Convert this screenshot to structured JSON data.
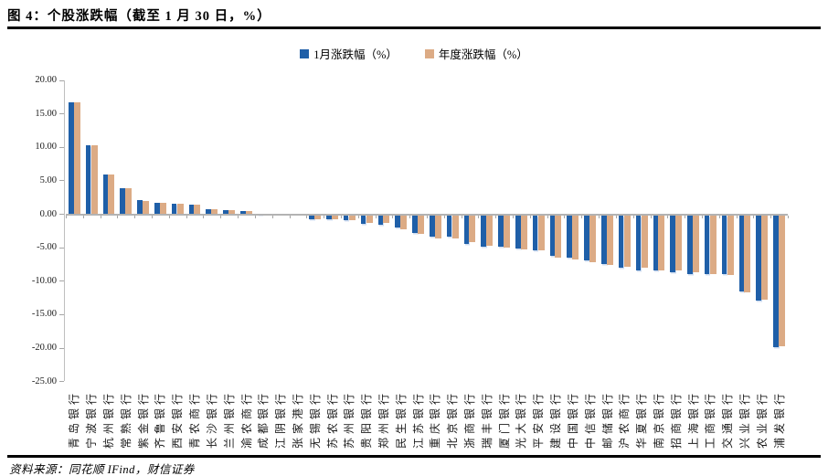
{
  "page": {
    "title": "图 4：个股涨跌幅（截至 1 月 30 日，%）",
    "source": "资料来源：同花顺 IFind，财信证券"
  },
  "chart_data": {
    "type": "bar",
    "title": "图 4：个股涨跌幅（截至 1 月 30 日，%）",
    "xlabel": "",
    "ylabel": "",
    "ylim": [
      -25,
      20
    ],
    "ytick_step": 5,
    "ytick_labels": [
      "20.00",
      "15.00",
      "10.00",
      "5.00",
      "0.00",
      "-5.00",
      "-10.00",
      "-15.00",
      "-20.00",
      "-25.00"
    ],
    "grid": false,
    "legend_position": "top-center",
    "categories": [
      "青岛银行",
      "宁波银行",
      "杭州银行",
      "常熟银行",
      "紫金银行",
      "齐鲁银行",
      "西安银行",
      "青农商行",
      "长沙银行",
      "兰州银行",
      "渝农商行",
      "成都银行",
      "江阴银行",
      "张家港行",
      "无锡银行",
      "苏农银行",
      "苏州银行",
      "贵阳银行",
      "郑州银行",
      "民生银行",
      "江苏银行",
      "重庆银行",
      "北京银行",
      "浙商银行",
      "瑞丰银行",
      "厦门银行",
      "光大银行",
      "平安银行",
      "建设银行",
      "中国银行",
      "中信银行",
      "邮储银行",
      "沪农商行",
      "华夏银行",
      "南京银行",
      "招商银行",
      "上海银行",
      "工商银行",
      "交通银行",
      "兴业银行",
      "农业银行",
      "浦发银行"
    ],
    "series": [
      {
        "name": "1月涨跌幅（%）",
        "color": "#1f5fa8",
        "values": [
          16.6,
          10.3,
          5.9,
          3.8,
          2.0,
          1.6,
          1.5,
          1.4,
          0.7,
          0.6,
          0.35,
          0.05,
          0,
          0,
          -0.6,
          -0.65,
          -0.8,
          -1.3,
          -1.5,
          -1.9,
          -2.6,
          -3.2,
          -3.2,
          -4.3,
          -4.7,
          -4.75,
          -5.0,
          -5.2,
          -6.1,
          -6.3,
          -6.8,
          -7.3,
          -7.9,
          -8.2,
          -8.3,
          -8.6,
          -8.75,
          -8.8,
          -8.85,
          -11.4,
          -12.7,
          -19.7
        ]
      },
      {
        "name": "年度涨跌幅（%）",
        "color": "#dcab85",
        "values": [
          16.6,
          10.3,
          5.9,
          3.8,
          1.9,
          1.6,
          1.5,
          1.4,
          0.7,
          0.5,
          0.35,
          0.05,
          0,
          0,
          -0.6,
          -0.6,
          -0.75,
          -1.1,
          -1.2,
          -2.1,
          -2.8,
          -3.5,
          -3.5,
          -4.0,
          -4.6,
          -4.9,
          -5.1,
          -5.3,
          -6.4,
          -6.6,
          -7.0,
          -7.5,
          -7.7,
          -7.9,
          -8.2,
          -8.3,
          -8.6,
          -8.8,
          -9.0,
          -11.6,
          -12.6,
          -19.6
        ]
      }
    ]
  }
}
